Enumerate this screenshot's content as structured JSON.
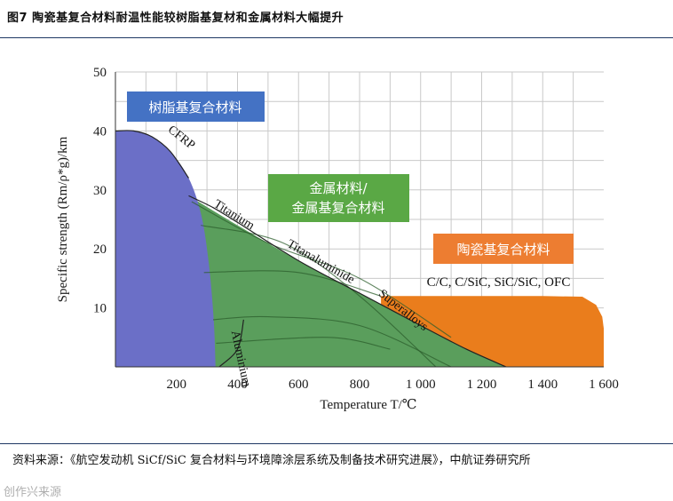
{
  "figure": {
    "title": "图7  陶瓷基复合材料耐温性能较树脂基复材和金属材料大幅提升",
    "source": "资料来源：《航空发动机 SiCf/SiC 复合材料与环境障涂层系统及制备技术研究进展》，中航证券研究所",
    "watermark": "创作兴来源"
  },
  "chart_data": {
    "type": "area",
    "xlabel": "Temperature T/℃",
    "ylabel": "Specific strength (Rm/ρ*g)/km",
    "xlim": [
      0,
      1600
    ],
    "ylim": [
      0,
      50
    ],
    "x_ticks": [
      200,
      400,
      600,
      800,
      1000,
      1200,
      1400,
      1600
    ],
    "x_tick_labels": [
      "200",
      "400",
      "600",
      "800",
      "1 000",
      "1 200",
      "1 400",
      "1 600"
    ],
    "y_ticks": [
      10,
      20,
      30,
      40,
      50
    ],
    "y_tick_labels": [
      "10",
      "20",
      "30",
      "40",
      "50"
    ],
    "grid": true,
    "colors": {
      "resin": "#6b6fc7",
      "metal": "#5a9e5c",
      "ceramic": "#ea7d1c",
      "grid": "#c9c9c9",
      "box_blue": "#4472c4",
      "box_green": "#5aa845",
      "box_orange": "#ed7d31"
    },
    "regions": [
      {
        "name": "树脂基复合材料",
        "color": "#6b6fc7",
        "boundary": [
          [
            0,
            40
          ],
          [
            60,
            40
          ],
          [
            120,
            39
          ],
          [
            180,
            36.5
          ],
          [
            240,
            32
          ],
          [
            280,
            26
          ],
          [
            305,
            18
          ],
          [
            322,
            8
          ],
          [
            328,
            0
          ]
        ]
      },
      {
        "name": "金属材料/金属基复合材料",
        "color": "#5a9e5c",
        "boundary": [
          [
            240,
            29
          ],
          [
            400,
            24
          ],
          [
            600,
            18
          ],
          [
            800,
            12.5
          ],
          [
            1000,
            7
          ],
          [
            1150,
            3
          ],
          [
            1280,
            0
          ]
        ]
      },
      {
        "name": "陶瓷基复合材料",
        "color": "#ea7d1c",
        "boundary": [
          [
            870,
            12
          ],
          [
            1000,
            12
          ],
          [
            1200,
            12
          ],
          [
            1400,
            12
          ],
          [
            1530,
            11.9
          ],
          [
            1575,
            10.5
          ],
          [
            1595,
            8.5
          ],
          [
            1600,
            6.5
          ],
          [
            1600,
            0
          ]
        ]
      }
    ],
    "material_curves": [
      {
        "name": "CFRP",
        "points": [
          [
            0,
            40
          ],
          [
            60,
            40
          ],
          [
            120,
            39
          ],
          [
            180,
            36.5
          ],
          [
            240,
            32
          ]
        ]
      },
      {
        "name": "Titanium",
        "points": [
          [
            240,
            29
          ],
          [
            320,
            27
          ],
          [
            400,
            24.5
          ]
        ]
      },
      {
        "name": "Titanaluminide",
        "points": [
          [
            400,
            24.5
          ],
          [
            600,
            18
          ],
          [
            800,
            12.5
          ]
        ]
      },
      {
        "name": "Superalloys",
        "points": [
          [
            800,
            12.5
          ],
          [
            1000,
            7
          ],
          [
            1150,
            3
          ],
          [
            1280,
            0
          ]
        ]
      },
      {
        "name": "Aluminium",
        "points": [
          [
            340,
            0
          ],
          [
            400,
            3
          ],
          [
            420,
            8
          ]
        ]
      }
    ],
    "inner_lines": [
      [
        [
          250,
          28
        ],
        [
          500,
          21
        ],
        [
          800,
          15
        ],
        [
          1100,
          5
        ]
      ],
      [
        [
          280,
          24
        ],
        [
          550,
          21
        ],
        [
          800,
          12
        ],
        [
          1050,
          0
        ]
      ],
      [
        [
          290,
          16
        ],
        [
          600,
          16
        ],
        [
          870,
          12
        ]
      ],
      [
        [
          320,
          8
        ],
        [
          500,
          8.5
        ],
        [
          800,
          7
        ],
        [
          1100,
          0
        ]
      ],
      [
        [
          330,
          4
        ],
        [
          700,
          5
        ],
        [
          900,
          3
        ]
      ]
    ],
    "boxes": [
      {
        "label": "树脂基复合材料",
        "color": "#4472c4"
      },
      {
        "label_lines": [
          "金属材料/",
          "金属基复合材料"
        ],
        "color": "#5aa845"
      },
      {
        "label": "陶瓷基复合材料",
        "color": "#ed7d31"
      }
    ],
    "annotations": [
      {
        "text": "CFRP"
      },
      {
        "text": "Titanium"
      },
      {
        "text": "Titanaluminide"
      },
      {
        "text": "Superalloys"
      },
      {
        "text": "Aluminium"
      },
      {
        "text": "C/C, C/SiC, SiC/SiC, OFC"
      }
    ]
  }
}
